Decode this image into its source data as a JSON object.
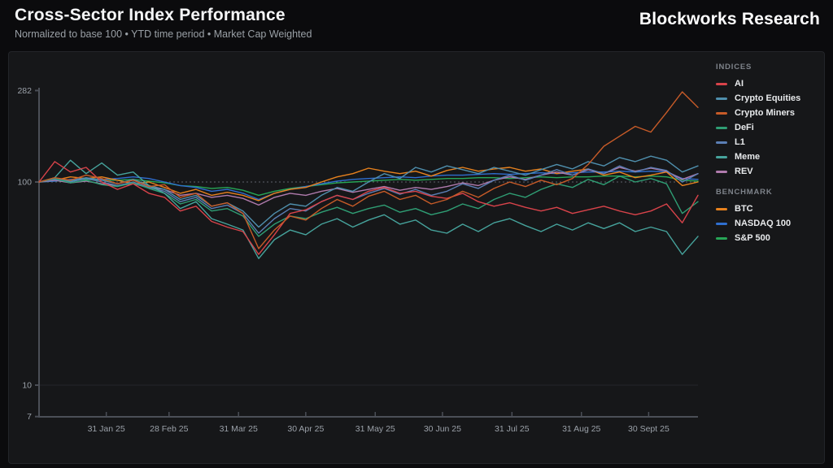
{
  "header": {
    "title": "Cross-Sector Index Performance",
    "subtitle": "Normalized to base 100 • YTD time period • Market Cap Weighted",
    "brand": "Blockworks Research"
  },
  "legend": {
    "indices_label": "INDICES",
    "benchmark_label": "BENCHMARK"
  },
  "colors": {
    "page_bg": "#0b0b0d",
    "panel_bg": "#161719",
    "axis": "#4b4f57",
    "tick_label": "#9aa0a8",
    "grid_minor": "#24262b",
    "reference_dash": "#5d626b"
  },
  "chart_data": {
    "type": "line",
    "y_scale": "log",
    "ylim": [
      7,
      300
    ],
    "y_ticks": [
      282,
      100,
      10,
      7
    ],
    "reference_line": 100,
    "total_days": 294,
    "x_ticks": [
      {
        "day": 30,
        "label": "31 Jan 25"
      },
      {
        "day": 58,
        "label": "28 Feb 25"
      },
      {
        "day": 89,
        "label": "31 Mar 25"
      },
      {
        "day": 119,
        "label": "30 Apr 25"
      },
      {
        "day": 150,
        "label": "31 May 25"
      },
      {
        "day": 180,
        "label": "30 Jun 25"
      },
      {
        "day": 211,
        "label": "31 Jul 25"
      },
      {
        "day": 242,
        "label": "31 Aug 25"
      },
      {
        "day": 272,
        "label": "30 Sept 25"
      }
    ],
    "series": [
      {
        "name": "S&P 500",
        "group": "benchmark",
        "color": "#27a657",
        "values": [
          100,
          101,
          102,
          103,
          102,
          102,
          103,
          101,
          99,
          96,
          95,
          93,
          94,
          91,
          86,
          90,
          93,
          95,
          97,
          99,
          100,
          101,
          102,
          103,
          102,
          103,
          104,
          104,
          105,
          105,
          104,
          105,
          106,
          105,
          106,
          106,
          107,
          107,
          106,
          107,
          106,
          102,
          101
        ]
      },
      {
        "name": "NASDAQ 100",
        "group": "benchmark",
        "color": "#2f6fd0",
        "values": [
          100,
          101,
          103,
          104,
          103,
          104,
          106,
          104,
          100,
          96,
          94,
          90,
          92,
          88,
          82,
          88,
          92,
          95,
          98,
          101,
          103,
          104,
          105,
          106,
          105,
          107,
          108,
          108,
          109,
          110,
          109,
          110,
          111,
          110,
          111,
          112,
          112,
          113,
          112,
          113,
          112,
          104,
          103
        ]
      },
      {
        "name": "BTC",
        "group": "benchmark",
        "color": "#e8821e",
        "values": [
          100,
          102,
          106,
          104,
          106,
          102,
          98,
          100,
          94,
          88,
          92,
          86,
          89,
          86,
          81,
          88,
          92,
          94,
          100,
          106,
          110,
          117,
          113,
          110,
          113,
          107,
          114,
          118,
          113,
          116,
          118,
          113,
          116,
          110,
          113,
          116,
          108,
          112,
          105,
          108,
          112,
          96,
          100
        ]
      },
      {
        "name": "REV",
        "group": "indices",
        "color": "#b07bad",
        "values": [
          100,
          102,
          99,
          101,
          98,
          96,
          98,
          94,
          92,
          86,
          88,
          84,
          86,
          83,
          77,
          84,
          88,
          86,
          90,
          93,
          89,
          92,
          95,
          91,
          94,
          92,
          95,
          99,
          96,
          102,
          106,
          103,
          108,
          112,
          108,
          115,
          110,
          118,
          113,
          117,
          113,
          103,
          110
        ]
      },
      {
        "name": "L1",
        "group": "indices",
        "color": "#5b7fb5",
        "values": [
          100,
          103,
          100,
          104,
          100,
          96,
          100,
          94,
          90,
          80,
          84,
          74,
          77,
          70,
          56,
          66,
          74,
          72,
          80,
          86,
          82,
          88,
          93,
          87,
          92,
          86,
          90,
          98,
          93,
          102,
          108,
          102,
          108,
          115,
          108,
          116,
          110,
          120,
          112,
          118,
          114,
          100,
          110
        ]
      },
      {
        "name": "Crypto Equities",
        "group": "indices",
        "color": "#4f8fad",
        "values": [
          100,
          104,
          101,
          105,
          102,
          98,
          103,
          96,
          92,
          82,
          86,
          76,
          79,
          72,
          60,
          70,
          78,
          76,
          86,
          94,
          90,
          100,
          110,
          104,
          118,
          112,
          120,
          115,
          110,
          118,
          113,
          108,
          115,
          122,
          116,
          126,
          120,
          132,
          126,
          134,
          128,
          112,
          120
        ]
      },
      {
        "name": "DeFi",
        "group": "indices",
        "color": "#2f9e74",
        "values": [
          100,
          104,
          99,
          102,
          97,
          95,
          99,
          93,
          88,
          78,
          82,
          72,
          74,
          68,
          54,
          62,
          68,
          66,
          71,
          75,
          70,
          74,
          77,
          71,
          74,
          69,
          72,
          78,
          74,
          82,
          88,
          84,
          92,
          98,
          94,
          103,
          97,
          107,
          100,
          104,
          98,
          70,
          80
        ]
      },
      {
        "name": "Meme",
        "group": "indices",
        "color": "#46a39c",
        "values": [
          100,
          105,
          128,
          110,
          124,
          108,
          112,
          96,
          88,
          74,
          80,
          66,
          62,
          58,
          42,
          52,
          58,
          55,
          62,
          66,
          60,
          65,
          69,
          62,
          65,
          58,
          56,
          62,
          57,
          63,
          66,
          61,
          57,
          62,
          58,
          63,
          59,
          63,
          57,
          60,
          57,
          44,
          54
        ]
      },
      {
        "name": "AI",
        "group": "indices",
        "color": "#d8434a",
        "values": [
          100,
          126,
          112,
          118,
          100,
          92,
          98,
          88,
          84,
          72,
          76,
          64,
          60,
          57,
          44,
          55,
          70,
          73,
          80,
          86,
          82,
          90,
          94,
          88,
          90,
          85,
          83,
          88,
          80,
          76,
          79,
          75,
          72,
          75,
          70,
          73,
          76,
          72,
          69,
          72,
          78,
          63,
          86
        ]
      },
      {
        "name": "Crypto Miners",
        "group": "indices",
        "color": "#c75b28",
        "values": [
          100,
          105,
          102,
          108,
          104,
          98,
          102,
          95,
          97,
          84,
          88,
          76,
          79,
          70,
          47,
          58,
          68,
          65,
          74,
          82,
          76,
          85,
          90,
          82,
          86,
          78,
          82,
          90,
          84,
          93,
          100,
          95,
          102,
          97,
          104,
          122,
          150,
          168,
          188,
          176,
          220,
          278,
          233
        ]
      }
    ],
    "legend_order_indices": [
      "AI",
      "Crypto Equities",
      "Crypto Miners",
      "DeFi",
      "L1",
      "Meme",
      "REV"
    ],
    "legend_order_benchmark": [
      "BTC",
      "NASDAQ 100",
      "S&P 500"
    ]
  }
}
